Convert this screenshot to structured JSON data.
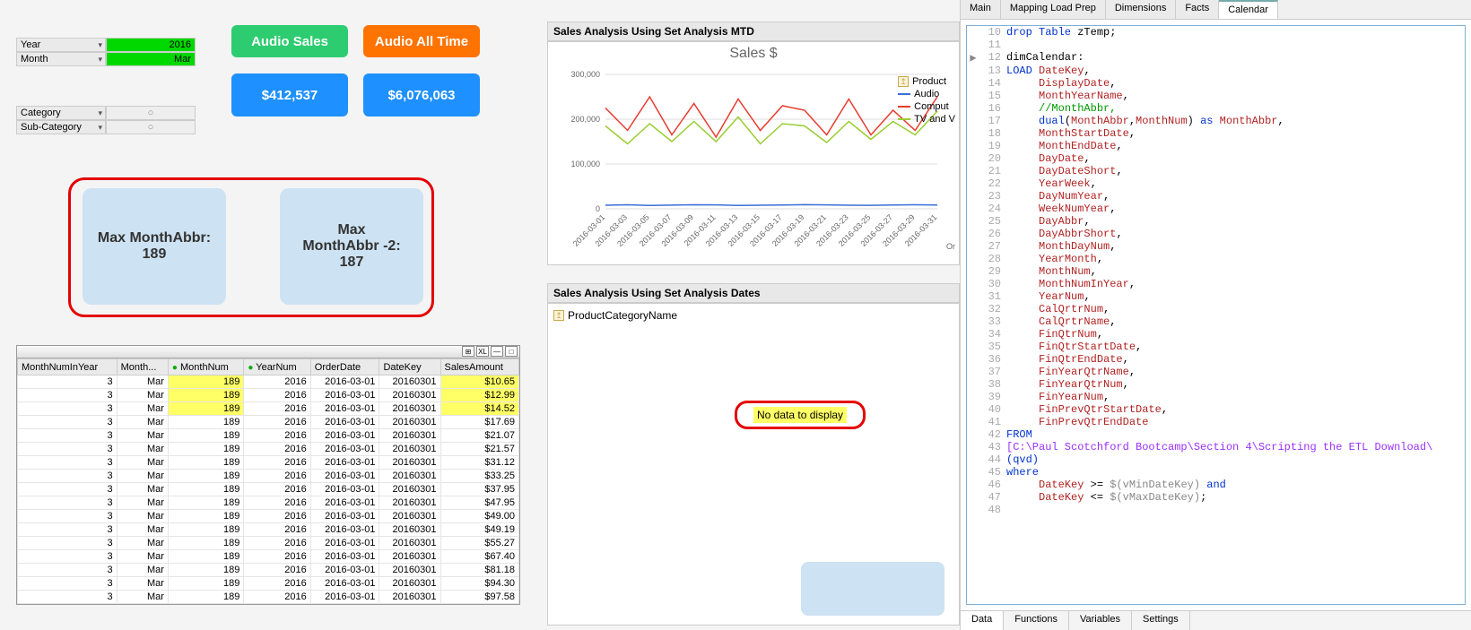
{
  "filters": {
    "year_label": "Year",
    "year_value": "2016",
    "month_label": "Month",
    "month_value": "Mar",
    "category_label": "Category",
    "subcategory_label": "Sub-Category"
  },
  "buttons": {
    "audio_sales": "Audio Sales",
    "audio_all_time": "Audio All Time",
    "kpi1": "$412,537",
    "kpi2": "$6,076,063"
  },
  "kpi_cards": {
    "card1_line1": "Max MonthAbbr:",
    "card1_line2": "189",
    "card2_line1": "Max",
    "card2_line2": "MonthAbbr -2:",
    "card2_line3": "187"
  },
  "table": {
    "columns": [
      "MonthNumInYear",
      "Month...",
      "MonthNum",
      "YearNum",
      "OrderDate",
      "DateKey",
      "SalesAmount"
    ],
    "rows": [
      [
        "3",
        "Mar",
        "189",
        "2016",
        "2016-03-01",
        "20160301",
        "$10.65"
      ],
      [
        "3",
        "Mar",
        "189",
        "2016",
        "2016-03-01",
        "20160301",
        "$12.99"
      ],
      [
        "3",
        "Mar",
        "189",
        "2016",
        "2016-03-01",
        "20160301",
        "$14.52"
      ],
      [
        "3",
        "Mar",
        "189",
        "2016",
        "2016-03-01",
        "20160301",
        "$17.69"
      ],
      [
        "3",
        "Mar",
        "189",
        "2016",
        "2016-03-01",
        "20160301",
        "$21.07"
      ],
      [
        "3",
        "Mar",
        "189",
        "2016",
        "2016-03-01",
        "20160301",
        "$21.57"
      ],
      [
        "3",
        "Mar",
        "189",
        "2016",
        "2016-03-01",
        "20160301",
        "$31.12"
      ],
      [
        "3",
        "Mar",
        "189",
        "2016",
        "2016-03-01",
        "20160301",
        "$33.25"
      ],
      [
        "3",
        "Mar",
        "189",
        "2016",
        "2016-03-01",
        "20160301",
        "$37.95"
      ],
      [
        "3",
        "Mar",
        "189",
        "2016",
        "2016-03-01",
        "20160301",
        "$47.95"
      ],
      [
        "3",
        "Mar",
        "189",
        "2016",
        "2016-03-01",
        "20160301",
        "$49.00"
      ],
      [
        "3",
        "Mar",
        "189",
        "2016",
        "2016-03-01",
        "20160301",
        "$49.19"
      ],
      [
        "3",
        "Mar",
        "189",
        "2016",
        "2016-03-01",
        "20160301",
        "$55.27"
      ],
      [
        "3",
        "Mar",
        "189",
        "2016",
        "2016-03-01",
        "20160301",
        "$67.40"
      ],
      [
        "3",
        "Mar",
        "189",
        "2016",
        "2016-03-01",
        "20160301",
        "$81.18"
      ],
      [
        "3",
        "Mar",
        "189",
        "2016",
        "2016-03-01",
        "20160301",
        "$94.30"
      ],
      [
        "3",
        "Mar",
        "189",
        "2016",
        "2016-03-01",
        "20160301",
        "$97.58"
      ]
    ],
    "highlight_rows": 3
  },
  "chart_mtd": {
    "header": "Sales Analysis Using Set Analysis MTD",
    "title": "Sales $",
    "y_ticks": [
      "0",
      "100,000",
      "200,000",
      "300,000"
    ],
    "y_max": 300000,
    "x_ticks": [
      "2016-03-01",
      "2016-03-03",
      "2016-03-05",
      "2016-03-07",
      "2016-03-09",
      "2016-03-11",
      "2016-03-13",
      "2016-03-15",
      "2016-03-17",
      "2016-03-19",
      "2016-03-21",
      "2016-03-23",
      "2016-03-25",
      "2016-03-27",
      "2016-03-29",
      "2016-03-31"
    ],
    "x_label": "OrderDate",
    "legend_title": "Product",
    "series": [
      {
        "name": "Audio",
        "color": "#3b6fd6",
        "values": [
          8000,
          9000,
          7500,
          8200,
          9100,
          8800,
          7600,
          8000,
          8500,
          9200,
          8800,
          8000,
          7800,
          8400,
          9000,
          8600
        ]
      },
      {
        "name": "Comput",
        "color": "#e63c2f",
        "values": [
          225000,
          175000,
          250000,
          165000,
          235000,
          160000,
          245000,
          175000,
          230000,
          220000,
          165000,
          245000,
          165000,
          220000,
          175000,
          250000
        ]
      },
      {
        "name": "TV and V",
        "color": "#9acd32",
        "values": [
          185000,
          145000,
          190000,
          150000,
          195000,
          150000,
          205000,
          145000,
          190000,
          185000,
          148000,
          195000,
          155000,
          195000,
          165000,
          218000
        ]
      }
    ]
  },
  "chart_dates": {
    "header": "Sales Analysis Using Set Analysis Dates",
    "field": "ProductCategoryName",
    "nodata": "No data to display"
  },
  "editor": {
    "top_tabs": [
      "Main",
      "Mapping Load Prep",
      "Dimensions",
      "Facts",
      "Calendar"
    ],
    "active_top_tab": "Calendar",
    "bottom_tabs": [
      "Data",
      "Functions",
      "Variables",
      "Settings"
    ],
    "active_bottom_tab": "Data",
    "start_line": 10,
    "lines": [
      {
        "t": [
          {
            "c": "kw",
            "s": "drop Table"
          },
          {
            "c": "",
            "s": " zTemp;"
          }
        ]
      },
      {
        "t": [
          {
            "c": "",
            "s": ""
          }
        ]
      },
      {
        "t": [
          {
            "c": "",
            "s": "dimCalendar:"
          }
        ],
        "bp": true
      },
      {
        "t": [
          {
            "c": "kw",
            "s": "LOAD"
          },
          {
            "c": "",
            "s": " "
          },
          {
            "c": "fld",
            "s": "DateKey"
          },
          {
            "c": "",
            "s": ","
          }
        ]
      },
      {
        "t": [
          {
            "c": "",
            "s": "     "
          },
          {
            "c": "fld",
            "s": "DisplayDate"
          },
          {
            "c": "",
            "s": ","
          }
        ]
      },
      {
        "t": [
          {
            "c": "",
            "s": "     "
          },
          {
            "c": "fld",
            "s": "MonthYearName"
          },
          {
            "c": "",
            "s": ","
          }
        ]
      },
      {
        "t": [
          {
            "c": "",
            "s": "     "
          },
          {
            "c": "cm",
            "s": "//MonthAbbr,"
          }
        ]
      },
      {
        "t": [
          {
            "c": "",
            "s": "     "
          },
          {
            "c": "kw",
            "s": "dual"
          },
          {
            "c": "",
            "s": "("
          },
          {
            "c": "fld",
            "s": "MonthAbbr"
          },
          {
            "c": "",
            "s": ","
          },
          {
            "c": "fld",
            "s": "MonthNum"
          },
          {
            "c": "",
            "s": ") "
          },
          {
            "c": "kw",
            "s": "as"
          },
          {
            "c": "",
            "s": " "
          },
          {
            "c": "fld",
            "s": "MonthAbbr"
          },
          {
            "c": "",
            "s": ","
          }
        ]
      },
      {
        "t": [
          {
            "c": "",
            "s": "     "
          },
          {
            "c": "fld",
            "s": "MonthStartDate"
          },
          {
            "c": "",
            "s": ","
          }
        ]
      },
      {
        "t": [
          {
            "c": "",
            "s": "     "
          },
          {
            "c": "fld",
            "s": "MonthEndDate"
          },
          {
            "c": "",
            "s": ","
          }
        ]
      },
      {
        "t": [
          {
            "c": "",
            "s": "     "
          },
          {
            "c": "fld",
            "s": "DayDate"
          },
          {
            "c": "",
            "s": ","
          }
        ]
      },
      {
        "t": [
          {
            "c": "",
            "s": "     "
          },
          {
            "c": "fld",
            "s": "DayDateShort"
          },
          {
            "c": "",
            "s": ","
          }
        ]
      },
      {
        "t": [
          {
            "c": "",
            "s": "     "
          },
          {
            "c": "fld",
            "s": "YearWeek"
          },
          {
            "c": "",
            "s": ","
          }
        ]
      },
      {
        "t": [
          {
            "c": "",
            "s": "     "
          },
          {
            "c": "fld",
            "s": "DayNumYear"
          },
          {
            "c": "",
            "s": ","
          }
        ]
      },
      {
        "t": [
          {
            "c": "",
            "s": "     "
          },
          {
            "c": "fld",
            "s": "WeekNumYear"
          },
          {
            "c": "",
            "s": ","
          }
        ]
      },
      {
        "t": [
          {
            "c": "",
            "s": "     "
          },
          {
            "c": "fld",
            "s": "DayAbbr"
          },
          {
            "c": "",
            "s": ","
          }
        ]
      },
      {
        "t": [
          {
            "c": "",
            "s": "     "
          },
          {
            "c": "fld",
            "s": "DayAbbrShort"
          },
          {
            "c": "",
            "s": ","
          }
        ]
      },
      {
        "t": [
          {
            "c": "",
            "s": "     "
          },
          {
            "c": "fld",
            "s": "MonthDayNum"
          },
          {
            "c": "",
            "s": ","
          }
        ]
      },
      {
        "t": [
          {
            "c": "",
            "s": "     "
          },
          {
            "c": "fld",
            "s": "YearMonth"
          },
          {
            "c": "",
            "s": ","
          }
        ]
      },
      {
        "t": [
          {
            "c": "",
            "s": "     "
          },
          {
            "c": "fld",
            "s": "MonthNum"
          },
          {
            "c": "",
            "s": ","
          }
        ]
      },
      {
        "t": [
          {
            "c": "",
            "s": "     "
          },
          {
            "c": "fld",
            "s": "MonthNumInYear"
          },
          {
            "c": "",
            "s": ","
          }
        ]
      },
      {
        "t": [
          {
            "c": "",
            "s": "     "
          },
          {
            "c": "fld",
            "s": "YearNum"
          },
          {
            "c": "",
            "s": ","
          }
        ]
      },
      {
        "t": [
          {
            "c": "",
            "s": "     "
          },
          {
            "c": "fld",
            "s": "CalQrtrNum"
          },
          {
            "c": "",
            "s": ","
          }
        ]
      },
      {
        "t": [
          {
            "c": "",
            "s": "     "
          },
          {
            "c": "fld",
            "s": "CalQrtrName"
          },
          {
            "c": "",
            "s": ","
          }
        ]
      },
      {
        "t": [
          {
            "c": "",
            "s": "     "
          },
          {
            "c": "fld",
            "s": "FinQtrNum"
          },
          {
            "c": "",
            "s": ","
          }
        ]
      },
      {
        "t": [
          {
            "c": "",
            "s": "     "
          },
          {
            "c": "fld",
            "s": "FinQtrStartDate"
          },
          {
            "c": "",
            "s": ","
          }
        ]
      },
      {
        "t": [
          {
            "c": "",
            "s": "     "
          },
          {
            "c": "fld",
            "s": "FinQtrEndDate"
          },
          {
            "c": "",
            "s": ","
          }
        ]
      },
      {
        "t": [
          {
            "c": "",
            "s": "     "
          },
          {
            "c": "fld",
            "s": "FinYearQtrName"
          },
          {
            "c": "",
            "s": ","
          }
        ]
      },
      {
        "t": [
          {
            "c": "",
            "s": "     "
          },
          {
            "c": "fld",
            "s": "FinYearQtrNum"
          },
          {
            "c": "",
            "s": ","
          }
        ]
      },
      {
        "t": [
          {
            "c": "",
            "s": "     "
          },
          {
            "c": "fld",
            "s": "FinYearNum"
          },
          {
            "c": "",
            "s": ","
          }
        ]
      },
      {
        "t": [
          {
            "c": "",
            "s": "     "
          },
          {
            "c": "fld",
            "s": "FinPrevQtrStartDate"
          },
          {
            "c": "",
            "s": ","
          }
        ]
      },
      {
        "t": [
          {
            "c": "",
            "s": "     "
          },
          {
            "c": "fld",
            "s": "FinPrevQtrEndDate"
          }
        ]
      },
      {
        "t": [
          {
            "c": "kw",
            "s": "FROM"
          }
        ]
      },
      {
        "t": [
          {
            "c": "fn",
            "s": "[C:\\Paul Scotchford Bootcamp\\Section 4\\Scripting the ETL Download\\"
          }
        ]
      },
      {
        "t": [
          {
            "c": "kw",
            "s": "(qvd)"
          }
        ]
      },
      {
        "t": [
          {
            "c": "kw",
            "s": "where"
          }
        ]
      },
      {
        "t": [
          {
            "c": "",
            "s": "     "
          },
          {
            "c": "fld",
            "s": "DateKey"
          },
          {
            "c": "",
            "s": " >= "
          },
          {
            "c": "str",
            "s": "$(vMinDateKey)"
          },
          {
            "c": "",
            "s": " "
          },
          {
            "c": "kw",
            "s": "and"
          }
        ]
      },
      {
        "t": [
          {
            "c": "",
            "s": "     "
          },
          {
            "c": "fld",
            "s": "DateKey"
          },
          {
            "c": "",
            "s": " <= "
          },
          {
            "c": "str",
            "s": "$(vMaxDateKey)"
          },
          {
            "c": "",
            "s": ";"
          }
        ]
      },
      {
        "t": [
          {
            "c": "",
            "s": ""
          }
        ]
      }
    ]
  }
}
